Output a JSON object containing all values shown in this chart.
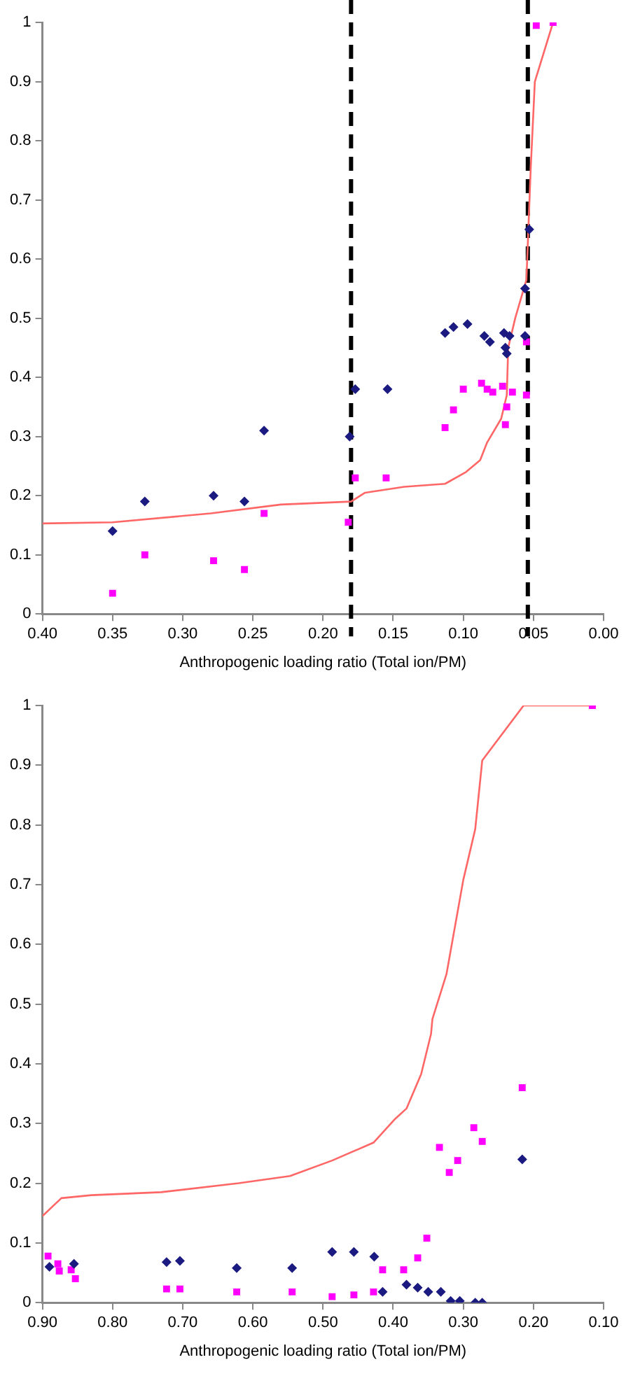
{
  "chart_data": [
    {
      "type": "scatter",
      "xlabel": "Anthropogenic loading ratio (Total ion/PM)",
      "xlim": [
        0.4,
        0
      ],
      "ylim": [
        0,
        1
      ],
      "xticks": [
        {
          "value": 0.4,
          "label": "0.40"
        },
        {
          "value": 0.35,
          "label": "0.35"
        },
        {
          "value": 0.3,
          "label": "0.30"
        },
        {
          "value": 0.25,
          "label": "0.25"
        },
        {
          "value": 0.2,
          "label": "0.20"
        },
        {
          "value": 0.15,
          "label": "0.15"
        },
        {
          "value": 0.1,
          "label": "0.10"
        },
        {
          "value": 0.05,
          "label": "0.05"
        },
        {
          "value": 0,
          "label": "0.00"
        }
      ],
      "yticks": [
        0,
        0.1,
        0.2,
        0.3,
        0.4,
        0.5,
        0.6,
        0.7,
        0.8,
        0.9,
        1
      ],
      "grid": false,
      "legend": false,
      "ref_lines": [
        {
          "axis": "x",
          "value": 0.18,
          "color": "#000000",
          "line_style": "dashed"
        },
        {
          "axis": "x",
          "value": 0.054,
          "color": "#000000",
          "line_style": "dashed"
        }
      ],
      "series": [
        {
          "type": "scatter",
          "marker": "diamond",
          "color": "#1a1a80",
          "x": [
            0.35,
            0.327,
            0.278,
            0.256,
            0.242,
            0.181,
            0.177,
            0.154,
            0.113,
            0.107,
            0.097,
            0.085,
            0.081,
            0.071,
            0.07,
            0.067,
            0.056,
            0.069,
            0.053,
            0.056
          ],
          "values": [
            0.14,
            0.19,
            0.2,
            0.19,
            0.31,
            0.3,
            0.38,
            0.38,
            0.475,
            0.485,
            0.49,
            0.47,
            0.46,
            0.475,
            0.45,
            0.47,
            0.47,
            0.44,
            0.65,
            0.55
          ]
        },
        {
          "type": "scatter",
          "marker": "square",
          "color": "#ff00ff",
          "x": [
            0.35,
            0.327,
            0.278,
            0.256,
            0.242,
            0.182,
            0.177,
            0.155,
            0.113,
            0.107,
            0.1,
            0.087,
            0.083,
            0.079,
            0.072,
            0.069,
            0.07,
            0.065,
            0.055,
            0.055,
            0.048,
            0.036
          ],
          "values": [
            0.035,
            0.1,
            0.09,
            0.075,
            0.17,
            0.155,
            0.23,
            0.23,
            0.315,
            0.345,
            0.38,
            0.39,
            0.38,
            0.375,
            0.385,
            0.35,
            0.32,
            0.375,
            0.37,
            0.46,
            0.995,
            1.0
          ]
        },
        {
          "type": "line",
          "marker": "none",
          "color": "#ff6666",
          "x": [
            0.4,
            0.35,
            0.28,
            0.23,
            0.18,
            0.17,
            0.142,
            0.113,
            0.098,
            0.088,
            0.083,
            0.073,
            0.069,
            0.068,
            0.063,
            0.055,
            0.052,
            0.049,
            0.036
          ],
          "values": [
            0.153,
            0.155,
            0.17,
            0.185,
            0.19,
            0.205,
            0.215,
            0.22,
            0.24,
            0.26,
            0.29,
            0.33,
            0.37,
            0.45,
            0.5,
            0.565,
            0.75,
            0.9,
            1.0
          ]
        }
      ]
    },
    {
      "type": "scatter",
      "xlabel": "Anthropogenic loading ratio (Total ion/PM)",
      "xlim": [
        0.9,
        0.1
      ],
      "ylim": [
        0,
        1
      ],
      "xticks": [
        {
          "value": 0.9,
          "label": "0.90"
        },
        {
          "value": 0.8,
          "label": "0.80"
        },
        {
          "value": 0.7,
          "label": "0.70"
        },
        {
          "value": 0.6,
          "label": "0.60"
        },
        {
          "value": 0.5,
          "label": "0.50"
        },
        {
          "value": 0.4,
          "label": "0.40"
        },
        {
          "value": 0.3,
          "label": "0.30"
        },
        {
          "value": 0.2,
          "label": "0.20"
        },
        {
          "value": 0.1,
          "label": "0.10"
        }
      ],
      "yticks": [
        0,
        0.1,
        0.2,
        0.3,
        0.4,
        0.5,
        0.6,
        0.7,
        0.8,
        0.9,
        1
      ],
      "grid": false,
      "legend": false,
      "series": [
        {
          "type": "scatter",
          "marker": "diamond",
          "color": "#1a1a80",
          "x": [
            0.89,
            0.855,
            0.723,
            0.704,
            0.623,
            0.544,
            0.487,
            0.456,
            0.427,
            0.415,
            0.381,
            0.365,
            0.35,
            0.332,
            0.318,
            0.305,
            0.283,
            0.273,
            0.216
          ],
          "values": [
            0.06,
            0.065,
            0.068,
            0.07,
            0.058,
            0.058,
            0.085,
            0.085,
            0.077,
            0.018,
            0.03,
            0.025,
            0.018,
            0.018,
            0.003,
            0.003,
            0,
            0,
            0.24
          ]
        },
        {
          "type": "scatter",
          "marker": "square",
          "color": "#ff00ff",
          "x": [
            0.892,
            0.878,
            0.876,
            0.859,
            0.853,
            0.723,
            0.704,
            0.623,
            0.544,
            0.487,
            0.456,
            0.428,
            0.415,
            0.385,
            0.365,
            0.352,
            0.334,
            0.32,
            0.308,
            0.285,
            0.273,
            0.216,
            0.116
          ],
          "values": [
            0.078,
            0.065,
            0.053,
            0.055,
            0.04,
            0.023,
            0.023,
            0.018,
            0.018,
            0.01,
            0.013,
            0.018,
            0.055,
            0.055,
            0.075,
            0.108,
            0.26,
            0.218,
            0.238,
            0.293,
            0.27,
            0.36,
            1.0
          ]
        },
        {
          "type": "line",
          "marker": "none",
          "color": "#ff6666",
          "x": [
            0.9,
            0.873,
            0.83,
            0.731,
            0.62,
            0.547,
            0.487,
            0.428,
            0.397,
            0.381,
            0.36,
            0.346,
            0.344,
            0.324,
            0.3,
            0.283,
            0.273,
            0.214,
            0.116
          ],
          "values": [
            0.145,
            0.175,
            0.18,
            0.185,
            0.2,
            0.212,
            0.238,
            0.268,
            0.308,
            0.325,
            0.383,
            0.45,
            0.475,
            0.55,
            0.708,
            0.793,
            0.908,
            1.0,
            1.0
          ]
        }
      ]
    }
  ]
}
